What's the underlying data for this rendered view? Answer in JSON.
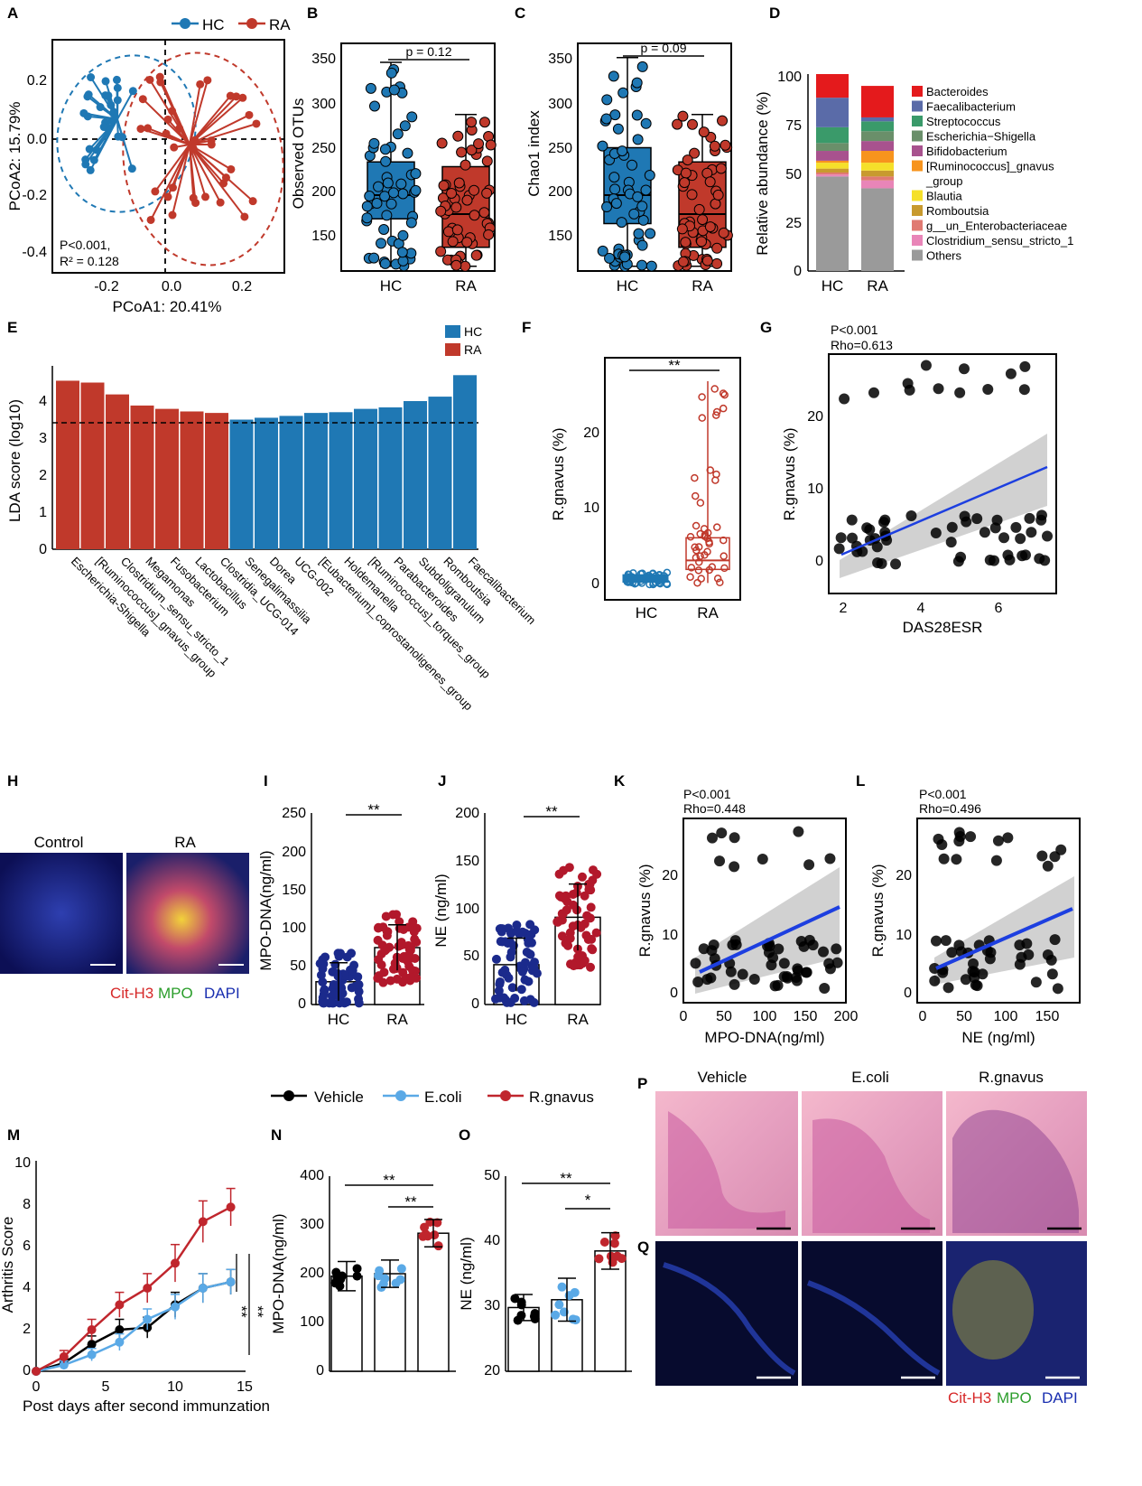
{
  "colors": {
    "hc": "#1f78b4",
    "ra": "#c0392b",
    "vehicle": "#000000",
    "ecoli": "#5aa9e6",
    "rgnavus": "#c0262d",
    "blue_fit": "#1d3fe0"
  },
  "panels": {
    "A": {
      "label": "A",
      "legend": [
        "HC",
        "RA"
      ],
      "xlabel": "PCoA1: 20.41%",
      "ylabel": "PCoA2: 15.79%",
      "xticks": [
        "-0.2",
        "0.0",
        "0.2"
      ],
      "yticks": [
        "0.2",
        "0.0",
        "-0.2",
        "-0.4"
      ],
      "stat1": "P<0.001,",
      "stat2": "R² = 0.128"
    },
    "B": {
      "label": "B",
      "ylabel": "Observed OTUs",
      "p": "p = 0.12",
      "cats": [
        "HC",
        "RA"
      ],
      "yticks": [
        "350",
        "300",
        "250",
        "200",
        "150"
      ]
    },
    "C": {
      "label": "C",
      "ylabel": "Chao1 index",
      "p": "p = 0.09",
      "cats": [
        "HC",
        "RA"
      ],
      "yticks": [
        "350",
        "300",
        "250",
        "200",
        "150"
      ]
    },
    "D": {
      "label": "D",
      "ylabel": "Relative abundance (%)",
      "cats": [
        "HC",
        "RA"
      ],
      "yticks": [
        "100",
        "75",
        "50",
        "25",
        "0"
      ],
      "legend": [
        "Bacteroides",
        "Faecalibacterium",
        "Streptococcus",
        "Escherichia−Shigella",
        "Bifidobacterium",
        "[Ruminococcus]_gnavus",
        "_group",
        "Blautia",
        "Romboutsia",
        "g__un_Enterobacteriaceae",
        "Clostridium_sensu_stricto_1",
        "Others"
      ]
    },
    "E": {
      "label": "E",
      "ylabel": "LDA score (log10)",
      "yticks": [
        "4",
        "3",
        "2",
        "1",
        "0"
      ],
      "legend": [
        "HC",
        "RA"
      ]
    },
    "F": {
      "label": "F",
      "ylabel": "R.gnavus (%)",
      "sig": "**",
      "cats": [
        "HC",
        "RA"
      ],
      "yticks": [
        "20",
        "10",
        "0"
      ]
    },
    "G": {
      "label": "G",
      "p": "P<0.001",
      "rho": "Rho=0.613",
      "ylabel": "R.gnavus (%)",
      "xlabel": "DAS28ESR",
      "xticks": [
        "2",
        "4",
        "6"
      ],
      "yticks": [
        "20",
        "10",
        "0"
      ]
    },
    "H": {
      "label": "H",
      "left": "Control",
      "right": "RA",
      "stain1": "Cit-H3",
      "stain2": "MPO",
      "stain3": "DAPI"
    },
    "I": {
      "label": "I",
      "ylabel": "MPO-DNA(ng/ml)",
      "sig": "**",
      "cats": [
        "HC",
        "RA"
      ],
      "yticks": [
        "250",
        "200",
        "150",
        "100",
        "50",
        "0"
      ]
    },
    "J": {
      "label": "J",
      "ylabel": "NE (ng/ml)",
      "sig": "**",
      "cats": [
        "HC",
        "RA"
      ],
      "yticks": [
        "200",
        "150",
        "100",
        "50",
        "0"
      ]
    },
    "K": {
      "label": "K",
      "p": "P<0.001",
      "rho": "Rho=0.448",
      "ylabel": "R.gnavus (%)",
      "xlabel": "MPO-DNA(ng/ml)",
      "xticks": [
        "0",
        "50",
        "100",
        "150",
        "200"
      ],
      "yticks": [
        "20",
        "10",
        "0"
      ]
    },
    "L": {
      "label": "L",
      "p": "P<0.001",
      "rho": "Rho=0.496",
      "ylabel": "R.gnavus (%)",
      "xlabel": "NE (ng/ml)",
      "xticks": [
        "0",
        "50",
        "100",
        "150"
      ],
      "yticks": [
        "20",
        "10",
        "0"
      ]
    },
    "legend3": [
      "Vehicle",
      "E.coli",
      "R.gnavus"
    ],
    "M": {
      "label": "M",
      "ylabel": "Arthritis Score",
      "xlabel": "Post days after second immunzation",
      "xticks": [
        "0",
        "5",
        "10",
        "15"
      ],
      "yticks": [
        "10",
        "8",
        "6",
        "4",
        "2",
        "0"
      ],
      "sig1": "**",
      "sig2": "**"
    },
    "N": {
      "label": "N",
      "ylabel": "MPO-DNA(ng/ml)",
      "sig1": "**",
      "sig2": "**",
      "yticks": [
        "400",
        "300",
        "200",
        "100",
        "0"
      ]
    },
    "O": {
      "label": "O",
      "ylabel": "NE (ng/ml)",
      "sig1": "**",
      "sig2": "*",
      "yticks": [
        "50",
        "40",
        "30",
        "20"
      ]
    },
    "P": {
      "label": "P",
      "cols": [
        "Vehicle",
        "E.coli",
        "R.gnavus"
      ]
    },
    "Q": {
      "label": "Q",
      "stain1": "Cit-H3",
      "stain2": "MPO",
      "stain3": "DAPI"
    }
  },
  "chart_data": [
    {
      "panel": "B",
      "type": "box",
      "categories": [
        "HC",
        "RA"
      ],
      "ylim": [
        120,
        360
      ],
      "series": [
        {
          "name": "HC",
          "median": 200,
          "q1": 175,
          "q3": 235,
          "min": 125,
          "max": 340
        },
        {
          "name": "RA",
          "median": 180,
          "q1": 145,
          "q3": 230,
          "min": 125,
          "max": 285
        }
      ]
    },
    {
      "panel": "C",
      "type": "box",
      "categories": [
        "HC",
        "RA"
      ],
      "ylim": [
        120,
        360
      ],
      "series": [
        {
          "name": "HC",
          "median": 200,
          "q1": 170,
          "q3": 250,
          "min": 125,
          "max": 345
        },
        {
          "name": "RA",
          "median": 180,
          "q1": 145,
          "q3": 235,
          "min": 125,
          "max": 285
        }
      ]
    },
    {
      "panel": "D",
      "type": "stacked-bar",
      "categories": [
        "HC",
        "RA"
      ],
      "ylim": [
        0,
        100
      ],
      "series": [
        {
          "name": "Others",
          "values": [
            48,
            42
          ]
        },
        {
          "name": "Clostridium_sensu_stricto_1",
          "values": [
            1,
            4
          ]
        },
        {
          "name": "g__un_Enterobacteriaceae",
          "values": [
            1,
            2
          ]
        },
        {
          "name": "Romboutsia",
          "values": [
            2,
            3
          ]
        },
        {
          "name": "Blautia",
          "values": [
            3,
            4
          ]
        },
        {
          "name": "[Ruminococcus]_gnavus_group",
          "values": [
            1,
            6
          ]
        },
        {
          "name": "Bifidobacterium",
          "values": [
            5,
            5
          ]
        },
        {
          "name": "Escherichia-Shigella",
          "values": [
            4,
            5
          ]
        },
        {
          "name": "Streptococcus",
          "values": [
            8,
            5
          ]
        },
        {
          "name": "Faecalibacterium",
          "values": [
            15,
            2
          ]
        },
        {
          "name": "Bacteroides",
          "values": [
            12,
            16
          ]
        }
      ]
    },
    {
      "panel": "E",
      "type": "bar",
      "categories": [
        "Escherichia-Shigella",
        "[Ruminococcus]_gnavus_group",
        "Clostridium_sensu_stricto_1",
        "Megamonas",
        "Fusobacterium",
        "Lactobacillus",
        "Clostridia_UCG-014",
        "Senegalimassilia",
        "Dorea",
        "UCG-002",
        "[Eubacterium]_coprostanoligenes_group",
        "Holdemanella",
        "[Ruminococcus]_torques_group",
        "Parabacteroides",
        "Subdoligranulum",
        "Romboutsia",
        "Faecalibacterium"
      ],
      "values": [
        4.55,
        4.5,
        4.18,
        3.88,
        3.79,
        3.72,
        3.68,
        3.5,
        3.55,
        3.6,
        3.68,
        3.7,
        3.79,
        3.83,
        4.0,
        4.12,
        4.7
      ],
      "groups": [
        "RA",
        "RA",
        "RA",
        "RA",
        "RA",
        "RA",
        "RA",
        "HC",
        "HC",
        "HC",
        "HC",
        "HC",
        "HC",
        "HC",
        "HC",
        "HC",
        "HC"
      ],
      "threshold": 3.5,
      "ylim": [
        0,
        5
      ]
    },
    {
      "panel": "I",
      "type": "bar",
      "categories": [
        "HC",
        "RA"
      ],
      "values": [
        30,
        75
      ],
      "errors": [
        25,
        30
      ],
      "ylim": [
        0,
        250
      ]
    },
    {
      "panel": "J",
      "type": "bar",
      "categories": [
        "HC",
        "RA"
      ],
      "values": [
        42,
        92
      ],
      "errors": [
        28,
        35
      ],
      "ylim": [
        0,
        200
      ]
    },
    {
      "panel": "M",
      "type": "line",
      "x": [
        0,
        2,
        4,
        6,
        8,
        10,
        12,
        14
      ],
      "ylim": [
        0,
        10
      ],
      "xlim": [
        0,
        15
      ],
      "series": [
        {
          "name": "Vehicle",
          "values": [
            0,
            0.4,
            1.3,
            2.0,
            2.1,
            3.2,
            4.0,
            4.3
          ],
          "errors": [
            0,
            0.2,
            0.4,
            0.5,
            0.5,
            0.6,
            0.7,
            0.6
          ]
        },
        {
          "name": "E.coli",
          "values": [
            0,
            0.3,
            0.8,
            1.4,
            2.5,
            3.1,
            4.0,
            4.3
          ],
          "errors": [
            0,
            0.2,
            0.3,
            0.4,
            0.5,
            0.6,
            0.7,
            0.6
          ]
        },
        {
          "name": "R.gnavus",
          "values": [
            0,
            0.7,
            2.0,
            3.2,
            4.0,
            5.2,
            7.2,
            7.9
          ],
          "errors": [
            0,
            0.3,
            0.5,
            0.6,
            0.7,
            0.9,
            1.0,
            0.9
          ]
        }
      ]
    },
    {
      "panel": "N",
      "type": "bar",
      "categories": [
        "Vehicle",
        "E.coli",
        "R.gnavus"
      ],
      "values": [
        195,
        200,
        283
      ],
      "errors": [
        30,
        28,
        28
      ],
      "ylim": [
        0,
        400
      ]
    },
    {
      "panel": "O",
      "type": "bar",
      "categories": [
        "Vehicle",
        "E.coli",
        "R.gnavus"
      ],
      "values": [
        29.8,
        31.0,
        38.5
      ],
      "errors": [
        2.0,
        3.3,
        2.8
      ],
      "ylim": [
        20,
        50
      ]
    }
  ]
}
